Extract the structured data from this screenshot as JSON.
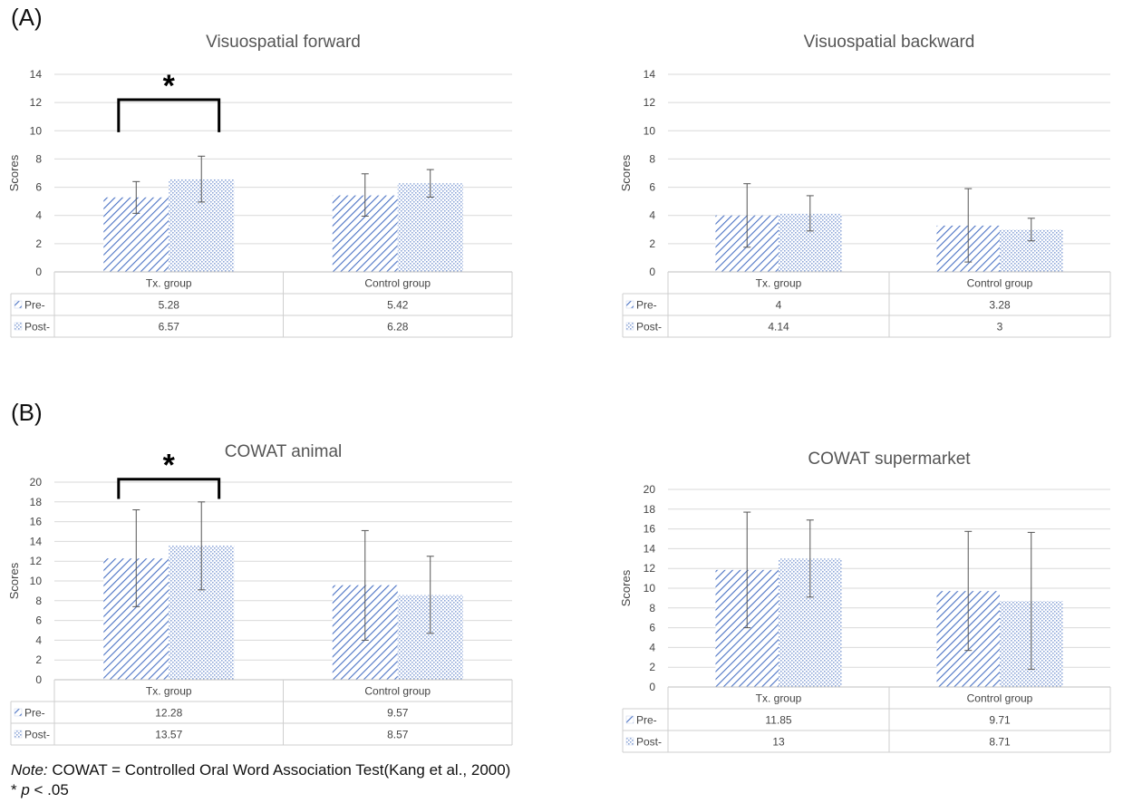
{
  "panels": [
    {
      "label": "(A)"
    },
    {
      "label": "(B)"
    }
  ],
  "legend_swatches": {
    "pre_color": "#4a72c4",
    "post_color": "#8ea7d8"
  },
  "notes": {
    "line1_prefix": "Note:",
    "line1_text": " COWAT = Controlled Oral Word Association Test(Kang et al., 2000)",
    "line2_prefix": "* ",
    "line2_p": "p",
    "line2_text": " < .05"
  },
  "chart_data": [
    {
      "type": "bar",
      "title": "Visuospatial forward",
      "ylabel": "Scores",
      "ylim": [
        0,
        14
      ],
      "yticks": [
        0,
        2,
        4,
        6,
        8,
        10,
        12,
        14
      ],
      "grid": true,
      "categories": [
        "Tx. group",
        "Control group"
      ],
      "series": [
        {
          "name": "Pre-",
          "values": [
            5.28,
            5.42
          ],
          "values_text": [
            "5.28",
            "5.42"
          ],
          "err_low": [
            4.15,
            3.95
          ],
          "err_high": [
            6.4,
            6.95
          ]
        },
        {
          "name": "Post-",
          "values": [
            6.57,
            6.28
          ],
          "values_text": [
            "6.57",
            "6.28"
          ],
          "err_low": [
            4.95,
            5.3
          ],
          "err_high": [
            8.2,
            7.25
          ]
        }
      ],
      "significance": {
        "category_index": 0,
        "ybar": 12.2,
        "ybottom": 9.9,
        "label": "*"
      }
    },
    {
      "type": "bar",
      "title": "Visuospatial backward",
      "ylabel": "Scores",
      "ylim": [
        0,
        14
      ],
      "yticks": [
        0,
        2,
        4,
        6,
        8,
        10,
        12,
        14
      ],
      "grid": true,
      "categories": [
        "Tx. group",
        "Control group"
      ],
      "series": [
        {
          "name": "Pre-",
          "values": [
            4,
            3.28
          ],
          "values_text": [
            "4",
            "3.28"
          ],
          "err_low": [
            1.75,
            0.7
          ],
          "err_high": [
            6.25,
            5.9
          ]
        },
        {
          "name": "Post-",
          "values": [
            4.14,
            3
          ],
          "values_text": [
            "4.14",
            "3"
          ],
          "err_low": [
            2.9,
            2.2
          ],
          "err_high": [
            5.4,
            3.8
          ]
        }
      ]
    },
    {
      "type": "bar",
      "title": "COWAT animal",
      "ylabel": "Scores",
      "ylim": [
        0,
        20
      ],
      "yticks": [
        0,
        2,
        4,
        6,
        8,
        10,
        12,
        14,
        16,
        18,
        20
      ],
      "grid": true,
      "categories": [
        "Tx. group",
        "Control group"
      ],
      "series": [
        {
          "name": "Pre-",
          "values": [
            12.28,
            9.57
          ],
          "values_text": [
            "12.28",
            "9.57"
          ],
          "err_low": [
            7.4,
            4.0
          ],
          "err_high": [
            17.2,
            15.1
          ]
        },
        {
          "name": "Post-",
          "values": [
            13.57,
            8.57
          ],
          "values_text": [
            "13.57",
            "8.57"
          ],
          "err_low": [
            9.1,
            4.7
          ],
          "err_high": [
            18.0,
            12.5
          ]
        }
      ],
      "significance": {
        "category_index": 0,
        "ybar": 20.3,
        "ybottom": 18.3,
        "label": "*"
      }
    },
    {
      "type": "bar",
      "title": "COWAT supermarket",
      "ylabel": "Scores",
      "ylim": [
        0,
        20
      ],
      "yticks": [
        0,
        2,
        4,
        6,
        8,
        10,
        12,
        14,
        16,
        18,
        20
      ],
      "grid": true,
      "categories": [
        "Tx. group",
        "Control group"
      ],
      "series": [
        {
          "name": "Pre-",
          "values": [
            11.85,
            9.71
          ],
          "values_text": [
            "11.85",
            "9.71"
          ],
          "err_low": [
            6.0,
            3.7
          ],
          "err_high": [
            17.7,
            15.75
          ]
        },
        {
          "name": "Post-",
          "values": [
            13,
            8.71
          ],
          "values_text": [
            "13",
            "8.71"
          ],
          "err_low": [
            9.1,
            1.8
          ],
          "err_high": [
            16.9,
            15.65
          ]
        }
      ]
    }
  ]
}
